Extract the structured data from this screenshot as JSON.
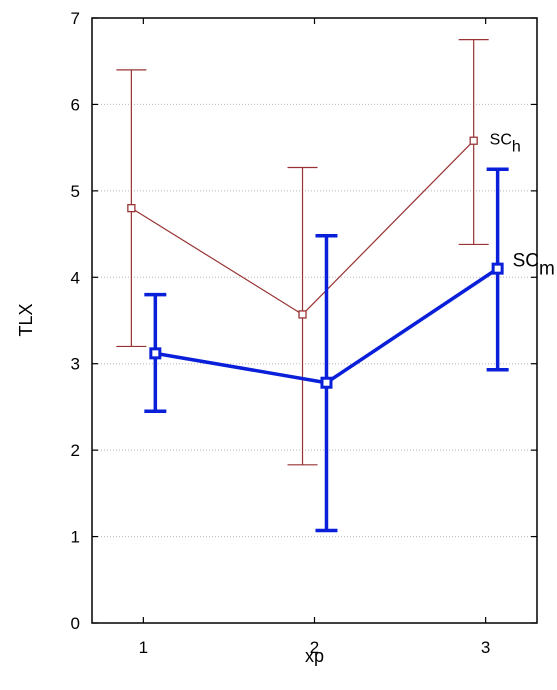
{
  "chart_data": {
    "type": "line",
    "title": "",
    "xlabel": "xp",
    "ylabel": "TLX",
    "x": [
      1,
      2,
      3
    ],
    "xlim": [
      0.7,
      3.3
    ],
    "ylim": [
      0,
      7
    ],
    "xticks": [
      "1",
      "2",
      "3"
    ],
    "yticks": [
      "0",
      "1",
      "2",
      "3",
      "4",
      "5",
      "6",
      "7"
    ],
    "grid": true,
    "series": [
      {
        "name": "SC",
        "subscript": "h",
        "color": "#993333",
        "x_offset": -0.07,
        "values": [
          4.8,
          3.57,
          5.58
        ],
        "error_low": [
          3.2,
          1.83,
          4.38
        ],
        "error_high": [
          6.4,
          5.27,
          6.75
        ]
      },
      {
        "name": "SC",
        "subscript": "m",
        "color": "#0a1fd9",
        "x_offset": 0.07,
        "values": [
          3.12,
          2.78,
          4.1
        ],
        "error_low": [
          2.45,
          1.07,
          2.93
        ],
        "error_high": [
          3.8,
          4.48,
          5.25
        ]
      }
    ]
  }
}
